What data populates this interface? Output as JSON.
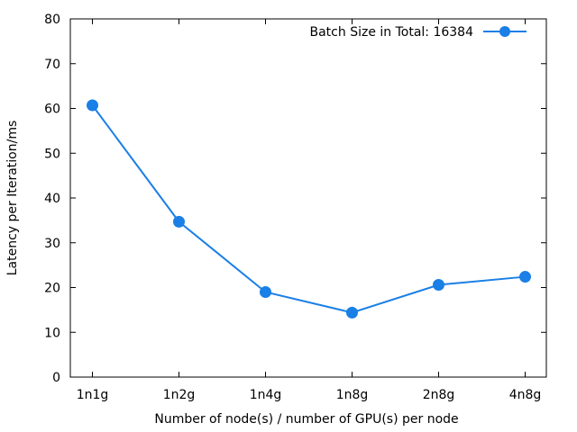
{
  "chart_data": {
    "type": "line",
    "categories": [
      "1n1g",
      "1n2g",
      "1n4g",
      "1n8g",
      "2n8g",
      "4n8g"
    ],
    "series": [
      {
        "name": "Batch Size in Total: 16384",
        "values": [
          60.7,
          34.7,
          19.0,
          14.4,
          20.6,
          22.4
        ]
      }
    ],
    "xlabel": "Number of node(s) / number of GPU(s) per node",
    "ylabel": "Latency per Iteration/ms",
    "ylim": [
      0,
      80
    ],
    "yticks": [
      0,
      10,
      20,
      30,
      40,
      50,
      60,
      70,
      80
    ],
    "grid": false,
    "legend": "top-right",
    "color": "#1a7fe6"
  }
}
